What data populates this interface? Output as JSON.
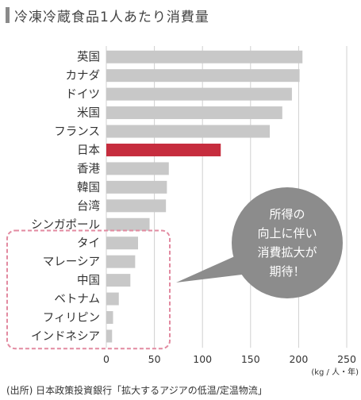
{
  "title": "冷凍冷蔵食品1人あたり消費量",
  "source": "(出所) 日本政策投資銀行「拡大するアジアの低温/定温物流」",
  "callout": {
    "lines": [
      "所得の",
      "向上に伴い",
      "消費拡大が",
      "期待！"
    ]
  },
  "colors": {
    "bar": "#c8c8c8",
    "highlight": "#c62d3e",
    "callout": "#8c8c8c",
    "dashed_box": "#e28aa0",
    "grid": "#d0d0d0"
  },
  "chart_data": {
    "type": "bar",
    "orientation": "horizontal",
    "categories": [
      "英国",
      "カナダ",
      "ドイツ",
      "米国",
      "フランス",
      "日本",
      "香港",
      "韓国",
      "台湾",
      "シンガポール",
      "タイ",
      "マレーシア",
      "中国",
      "ベトナム",
      "フィリピン",
      "インドネシア"
    ],
    "values": [
      204,
      201,
      193,
      183,
      170,
      119,
      65,
      63,
      62,
      45,
      33,
      30,
      25,
      13,
      7,
      6
    ],
    "highlight": "日本",
    "xlim": [
      0,
      250
    ],
    "xticks": [
      "0",
      "50",
      "100",
      "150",
      "200",
      "250"
    ],
    "unit": "(kg / 人・年)",
    "grid": "vertical"
  }
}
